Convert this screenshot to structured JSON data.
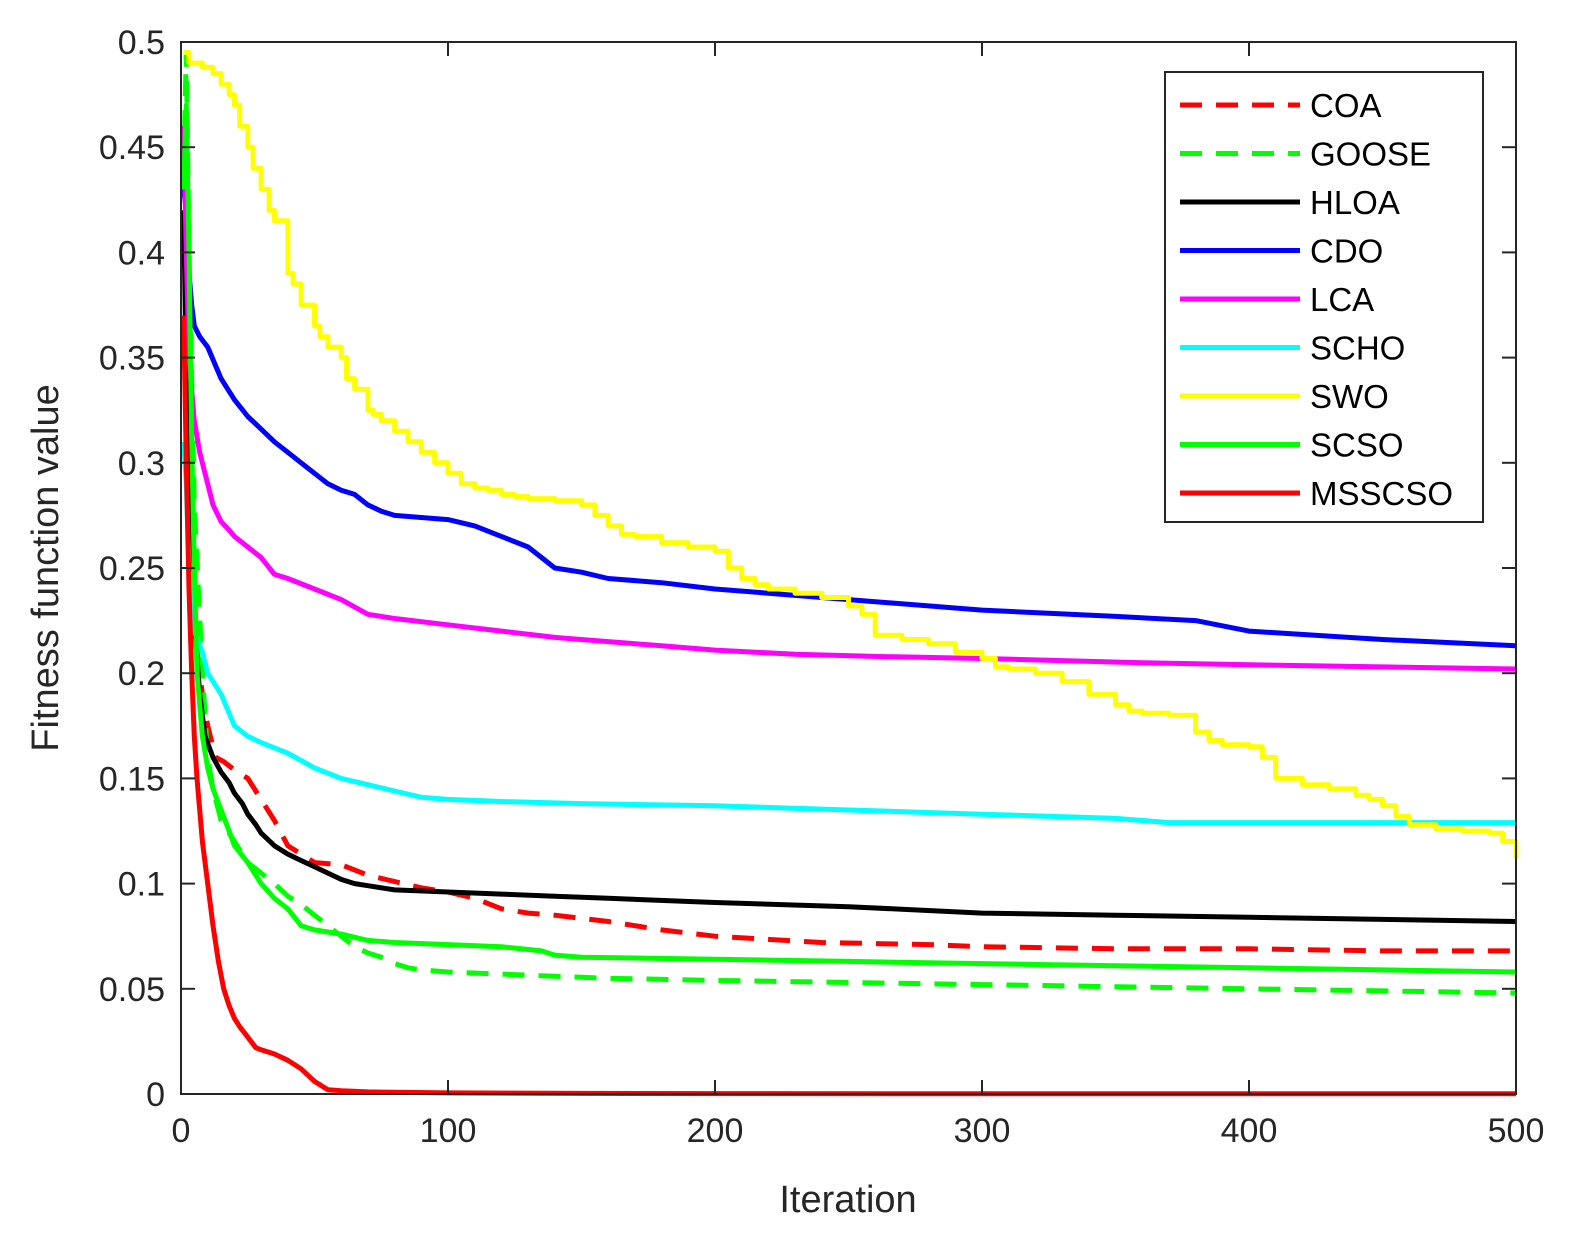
{
  "chart_data": {
    "type": "line",
    "title": "",
    "xlabel": "Iteration",
    "ylabel": "Fitness function value",
    "xlim": [
      0,
      500
    ],
    "ylim": [
      0,
      0.5
    ],
    "xticks": [
      "0",
      "100",
      "200",
      "300",
      "400",
      "500"
    ],
    "yticks": [
      "0",
      "0.05",
      "0.1",
      "0.15",
      "0.2",
      "0.25",
      "0.3",
      "0.35",
      "0.4",
      "0.45",
      "0.5"
    ],
    "grid": false,
    "legend_position": "top-right",
    "series": [
      {
        "name": "COA",
        "color": "#ff0000",
        "dash": "dashed",
        "step": false,
        "x": [
          1,
          3,
          5,
          8,
          10,
          13,
          16,
          20,
          25,
          30,
          35,
          40,
          45,
          50,
          60,
          70,
          80,
          90,
          100,
          110,
          120,
          130,
          140,
          160,
          180,
          200,
          240,
          280,
          300,
          350,
          400,
          450,
          500
        ],
        "y": [
          0.365,
          0.28,
          0.22,
          0.19,
          0.175,
          0.16,
          0.158,
          0.154,
          0.15,
          0.14,
          0.13,
          0.118,
          0.114,
          0.11,
          0.109,
          0.104,
          0.101,
          0.098,
          0.096,
          0.093,
          0.088,
          0.086,
          0.085,
          0.082,
          0.078,
          0.075,
          0.072,
          0.071,
          0.07,
          0.069,
          0.069,
          0.068,
          0.068
        ]
      },
      {
        "name": "GOOSE",
        "color": "#00ff00",
        "dash": "dashed",
        "step": false,
        "x": [
          1,
          2,
          3,
          5,
          8,
          10,
          12,
          15,
          20,
          25,
          30,
          35,
          40,
          45,
          50,
          55,
          60,
          65,
          70,
          75,
          80,
          85,
          90,
          100,
          120,
          140,
          160,
          200,
          250,
          300,
          350,
          400,
          450,
          500
        ],
        "y": [
          0.44,
          0.495,
          0.4,
          0.28,
          0.2,
          0.16,
          0.145,
          0.13,
          0.12,
          0.11,
          0.105,
          0.1,
          0.094,
          0.09,
          0.085,
          0.08,
          0.075,
          0.07,
          0.067,
          0.065,
          0.062,
          0.06,
          0.059,
          0.058,
          0.057,
          0.056,
          0.055,
          0.054,
          0.053,
          0.052,
          0.051,
          0.05,
          0.049,
          0.048
        ]
      },
      {
        "name": "HLOA",
        "color": "#000000",
        "dash": "solid",
        "step": false,
        "x": [
          1,
          2,
          3,
          5,
          7,
          9,
          12,
          15,
          18,
          20,
          23,
          25,
          28,
          30,
          35,
          40,
          45,
          50,
          55,
          60,
          65,
          70,
          80,
          100,
          120,
          140,
          160,
          200,
          250,
          300,
          350,
          400,
          450,
          500
        ],
        "y": [
          0.42,
          0.34,
          0.28,
          0.225,
          0.19,
          0.17,
          0.16,
          0.153,
          0.148,
          0.143,
          0.138,
          0.133,
          0.128,
          0.124,
          0.118,
          0.114,
          0.111,
          0.108,
          0.105,
          0.102,
          0.1,
          0.099,
          0.097,
          0.096,
          0.095,
          0.094,
          0.093,
          0.091,
          0.089,
          0.086,
          0.085,
          0.084,
          0.083,
          0.082
        ]
      },
      {
        "name": "CDO",
        "color": "#0000ff",
        "dash": "solid",
        "step": false,
        "x": [
          1,
          2,
          3,
          4,
          5,
          7,
          10,
          15,
          20,
          25,
          30,
          35,
          40,
          45,
          50,
          55,
          60,
          65,
          70,
          75,
          80,
          90,
          100,
          110,
          120,
          130,
          135,
          140,
          150,
          160,
          180,
          200,
          220,
          250,
          300,
          350,
          380,
          400,
          450,
          500
        ],
        "y": [
          0.43,
          0.42,
          0.39,
          0.375,
          0.365,
          0.36,
          0.355,
          0.34,
          0.33,
          0.322,
          0.316,
          0.31,
          0.305,
          0.3,
          0.295,
          0.29,
          0.287,
          0.285,
          0.28,
          0.277,
          0.275,
          0.274,
          0.273,
          0.27,
          0.265,
          0.26,
          0.255,
          0.25,
          0.248,
          0.245,
          0.243,
          0.24,
          0.238,
          0.235,
          0.23,
          0.227,
          0.225,
          0.22,
          0.216,
          0.213
        ]
      },
      {
        "name": "LCA",
        "color": "#ff00ff",
        "dash": "solid",
        "step": false,
        "x": [
          1,
          2,
          3,
          5,
          7,
          9,
          12,
          15,
          18,
          20,
          25,
          30,
          35,
          40,
          50,
          60,
          70,
          80,
          100,
          120,
          140,
          160,
          180,
          200,
          230,
          260,
          300,
          330,
          360,
          400,
          450,
          500
        ],
        "y": [
          0.46,
          0.4,
          0.35,
          0.32,
          0.305,
          0.295,
          0.28,
          0.272,
          0.268,
          0.265,
          0.26,
          0.255,
          0.247,
          0.245,
          0.24,
          0.235,
          0.228,
          0.226,
          0.223,
          0.22,
          0.217,
          0.215,
          0.213,
          0.211,
          0.209,
          0.208,
          0.207,
          0.206,
          0.205,
          0.204,
          0.203,
          0.202
        ]
      },
      {
        "name": "SCHO",
        "color": "#00ffff",
        "dash": "solid",
        "step": false,
        "x": [
          1,
          2,
          3,
          5,
          8,
          10,
          15,
          20,
          25,
          30,
          40,
          50,
          60,
          70,
          80,
          90,
          100,
          120,
          150,
          200,
          250,
          300,
          350,
          370,
          400,
          450,
          500
        ],
        "y": [
          0.31,
          0.29,
          0.25,
          0.22,
          0.21,
          0.2,
          0.19,
          0.175,
          0.17,
          0.167,
          0.162,
          0.155,
          0.15,
          0.147,
          0.144,
          0.141,
          0.14,
          0.139,
          0.138,
          0.137,
          0.135,
          0.133,
          0.131,
          0.129,
          0.129,
          0.129,
          0.129
        ]
      },
      {
        "name": "SWO",
        "color": "#ffff00",
        "dash": "solid",
        "step": true,
        "x": [
          1,
          3,
          8,
          12,
          15,
          18,
          20,
          22,
          25,
          27,
          30,
          33,
          35,
          40,
          42,
          45,
          50,
          52,
          55,
          60,
          62,
          65,
          70,
          72,
          75,
          80,
          85,
          90,
          95,
          100,
          105,
          110,
          115,
          120,
          125,
          130,
          140,
          150,
          155,
          160,
          165,
          170,
          180,
          190,
          200,
          205,
          210,
          215,
          220,
          230,
          240,
          250,
          255,
          260,
          270,
          280,
          290,
          300,
          305,
          310,
          320,
          330,
          340,
          350,
          355,
          360,
          370,
          380,
          385,
          390,
          400,
          405,
          410,
          420,
          430,
          440,
          445,
          450,
          455,
          460,
          470,
          480,
          490,
          495,
          500
        ],
        "y": [
          0.495,
          0.49,
          0.488,
          0.485,
          0.48,
          0.475,
          0.47,
          0.46,
          0.45,
          0.44,
          0.43,
          0.42,
          0.415,
          0.39,
          0.385,
          0.375,
          0.365,
          0.36,
          0.355,
          0.35,
          0.34,
          0.335,
          0.325,
          0.323,
          0.32,
          0.315,
          0.31,
          0.305,
          0.3,
          0.295,
          0.29,
          0.288,
          0.287,
          0.285,
          0.284,
          0.283,
          0.282,
          0.28,
          0.275,
          0.27,
          0.266,
          0.265,
          0.262,
          0.26,
          0.258,
          0.25,
          0.245,
          0.242,
          0.24,
          0.238,
          0.236,
          0.232,
          0.228,
          0.218,
          0.216,
          0.214,
          0.21,
          0.207,
          0.203,
          0.202,
          0.2,
          0.196,
          0.19,
          0.185,
          0.182,
          0.181,
          0.18,
          0.172,
          0.168,
          0.166,
          0.165,
          0.16,
          0.15,
          0.147,
          0.145,
          0.142,
          0.14,
          0.137,
          0.132,
          0.128,
          0.126,
          0.125,
          0.124,
          0.12,
          0.112
        ]
      },
      {
        "name": "SCSO",
        "color": "#00ff00",
        "dash": "solid",
        "step": false,
        "x": [
          1,
          2,
          3,
          4,
          5,
          6,
          8,
          10,
          12,
          15,
          18,
          20,
          25,
          30,
          35,
          40,
          45,
          50,
          60,
          70,
          80,
          100,
          120,
          135,
          140,
          150,
          200,
          250,
          300,
          350,
          400,
          450,
          500
        ],
        "y": [
          0.43,
          0.47,
          0.4,
          0.31,
          0.25,
          0.2,
          0.17,
          0.155,
          0.145,
          0.135,
          0.125,
          0.118,
          0.11,
          0.1,
          0.093,
          0.088,
          0.08,
          0.078,
          0.076,
          0.073,
          0.072,
          0.071,
          0.07,
          0.068,
          0.066,
          0.065,
          0.064,
          0.063,
          0.062,
          0.061,
          0.06,
          0.059,
          0.058
        ]
      },
      {
        "name": "MSSCSO",
        "color": "#ff0000",
        "dash": "solid",
        "step": false,
        "x": [
          1,
          2,
          3,
          4,
          5,
          6,
          7,
          8,
          10,
          12,
          14,
          16,
          18,
          20,
          22,
          25,
          28,
          30,
          35,
          40,
          45,
          50,
          55,
          60,
          70,
          80,
          100,
          150,
          200,
          300,
          400,
          500
        ],
        "y": [
          0.37,
          0.3,
          0.24,
          0.2,
          0.17,
          0.15,
          0.135,
          0.12,
          0.1,
          0.08,
          0.063,
          0.05,
          0.042,
          0.036,
          0.032,
          0.027,
          0.022,
          0.021,
          0.019,
          0.016,
          0.012,
          0.006,
          0.002,
          0.0015,
          0.001,
          0.0008,
          0.0005,
          0.0003,
          0.0002,
          0.0001,
          0.0001,
          0.0001
        ]
      }
    ]
  }
}
